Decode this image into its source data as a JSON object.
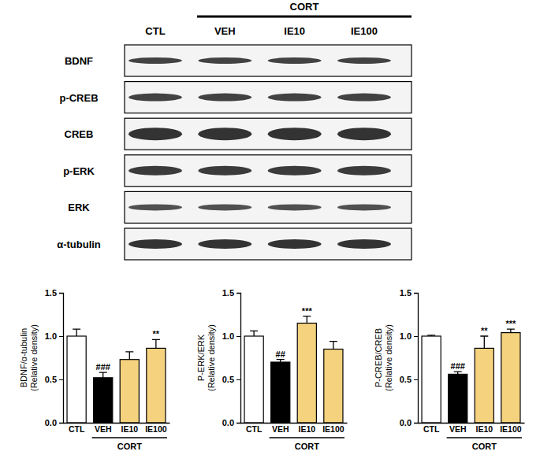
{
  "blot": {
    "group_label": "CORT",
    "lanes": [
      "CTL",
      "VEH",
      "IE10",
      "IE100"
    ],
    "rows": [
      "BDNF",
      "p-CREB",
      "CREB",
      "p-ERK",
      "ERK",
      "α-tubulin"
    ]
  },
  "chart_data": [
    {
      "type": "bar",
      "ylabel": [
        "BDNF/α-tubulin",
        "(Relative density)"
      ],
      "categories": [
        "CTL",
        "VEH",
        "IE10",
        "IE100"
      ],
      "values": [
        1.0,
        0.52,
        0.73,
        0.86
      ],
      "errors": [
        0.08,
        0.06,
        0.09,
        0.1
      ],
      "significance": [
        null,
        "###",
        null,
        "**"
      ],
      "annotations": [
        "CORT"
      ],
      "colors": [
        "#ffffff",
        "#000000",
        "#f5d27e",
        "#f5d27e"
      ],
      "ylim": [
        0,
        1.5
      ],
      "yticks": [
        {
          "value": 0,
          "label": "0.0"
        },
        {
          "value": 0.5,
          "label": "0.5"
        },
        {
          "value": 1,
          "label": "1.0"
        },
        {
          "value": 1.5,
          "label": "1.5"
        }
      ]
    },
    {
      "type": "bar",
      "ylabel": [
        "P-ERK/ERK",
        "(Relative density)"
      ],
      "categories": [
        "CTL",
        "VEH",
        "IE10",
        "IE100"
      ],
      "values": [
        1.0,
        0.7,
        1.15,
        0.85
      ],
      "errors": [
        0.06,
        0.03,
        0.08,
        0.09
      ],
      "significance": [
        null,
        "##",
        "***",
        null
      ],
      "annotations": [
        "CORT"
      ],
      "colors": [
        "#ffffff",
        "#000000",
        "#f5d27e",
        "#f5d27e"
      ],
      "ylim": [
        0,
        1.5
      ],
      "yticks": [
        {
          "value": 0,
          "label": "0.0"
        },
        {
          "value": 0.5,
          "label": "0.5"
        },
        {
          "value": 1,
          "label": "1.0"
        },
        {
          "value": 1.5,
          "label": "1.5"
        }
      ]
    },
    {
      "type": "bar",
      "ylabel": [
        "P-CREB/CREB",
        "(Relative density)"
      ],
      "categories": [
        "CTL",
        "VEH",
        "IE10",
        "IE100"
      ],
      "values": [
        1.0,
        0.56,
        0.86,
        1.04
      ],
      "errors": [
        0.01,
        0.03,
        0.14,
        0.04
      ],
      "significance": [
        null,
        "###",
        "**",
        "***"
      ],
      "annotations": [
        "CORT"
      ],
      "colors": [
        "#ffffff",
        "#000000",
        "#f5d27e",
        "#f5d27e"
      ],
      "ylim": [
        0,
        1.5
      ],
      "yticks": [
        {
          "value": 0,
          "label": "0.0"
        },
        {
          "value": 0.5,
          "label": "0.5"
        },
        {
          "value": 1,
          "label": "1.0"
        },
        {
          "value": 1.5,
          "label": "1.5"
        }
      ]
    }
  ]
}
